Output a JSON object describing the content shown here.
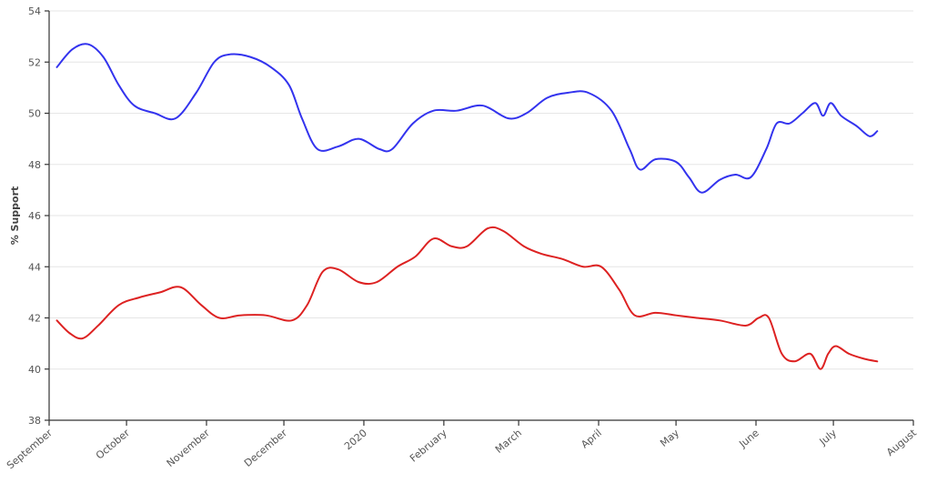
{
  "chart_data": {
    "type": "line",
    "title": "",
    "xlabel": "",
    "ylabel": "% Support",
    "ylim": [
      38,
      54
    ],
    "yticks": [
      38,
      40,
      42,
      44,
      46,
      48,
      50,
      52,
      54
    ],
    "grid": "horizontal",
    "x_axis": {
      "type": "date",
      "start": "2019-09-01",
      "end": "2020-08-01",
      "tick_dates": [
        "2019-09-01",
        "2019-10-01",
        "2019-11-01",
        "2019-12-01",
        "2020-01-01",
        "2020-02-01",
        "2020-03-01",
        "2020-04-01",
        "2020-05-01",
        "2020-06-01",
        "2020-07-01",
        "2020-08-01"
      ],
      "tick_labels": [
        "September",
        "October",
        "November",
        "December",
        "2020",
        "February",
        "March",
        "April",
        "May",
        "June",
        "July",
        "August"
      ]
    },
    "series": [
      {
        "color": "#3333ee",
        "points": [
          [
            "2019-09-04",
            51.8
          ],
          [
            "2019-09-10",
            52.5
          ],
          [
            "2019-09-16",
            52.7
          ],
          [
            "2019-09-22",
            52.2
          ],
          [
            "2019-09-28",
            51.1
          ],
          [
            "2019-10-04",
            50.3
          ],
          [
            "2019-10-12",
            50.0
          ],
          [
            "2019-10-20",
            49.8
          ],
          [
            "2019-10-28",
            50.8
          ],
          [
            "2019-11-04",
            52.0
          ],
          [
            "2019-11-10",
            52.3
          ],
          [
            "2019-11-18",
            52.2
          ],
          [
            "2019-11-26",
            51.8
          ],
          [
            "2019-12-03",
            51.1
          ],
          [
            "2019-12-08",
            49.8
          ],
          [
            "2019-12-14",
            48.6
          ],
          [
            "2019-12-22",
            48.7
          ],
          [
            "2019-12-30",
            49.0
          ],
          [
            "2020-01-07",
            48.6
          ],
          [
            "2020-01-12",
            48.6
          ],
          [
            "2020-01-20",
            49.6
          ],
          [
            "2020-01-28",
            50.1
          ],
          [
            "2020-02-06",
            50.1
          ],
          [
            "2020-02-16",
            50.3
          ],
          [
            "2020-02-26",
            49.8
          ],
          [
            "2020-03-04",
            50.0
          ],
          [
            "2020-03-12",
            50.6
          ],
          [
            "2020-03-20",
            50.8
          ],
          [
            "2020-03-28",
            50.8
          ],
          [
            "2020-04-06",
            50.1
          ],
          [
            "2020-04-13",
            48.6
          ],
          [
            "2020-04-17",
            47.8
          ],
          [
            "2020-04-23",
            48.2
          ],
          [
            "2020-05-01",
            48.1
          ],
          [
            "2020-05-06",
            47.5
          ],
          [
            "2020-05-11",
            46.9
          ],
          [
            "2020-05-18",
            47.4
          ],
          [
            "2020-05-24",
            47.6
          ],
          [
            "2020-05-30",
            47.5
          ],
          [
            "2020-06-05",
            48.6
          ],
          [
            "2020-06-09",
            49.6
          ],
          [
            "2020-06-14",
            49.6
          ],
          [
            "2020-06-19",
            50.0
          ],
          [
            "2020-06-24",
            50.4
          ],
          [
            "2020-06-27",
            49.9
          ],
          [
            "2020-06-30",
            50.4
          ],
          [
            "2020-07-04",
            49.9
          ],
          [
            "2020-07-10",
            49.5
          ],
          [
            "2020-07-15",
            49.1
          ],
          [
            "2020-07-18",
            49.3
          ]
        ]
      },
      {
        "color": "#dd2222",
        "points": [
          [
            "2019-09-04",
            41.9
          ],
          [
            "2019-09-09",
            41.4
          ],
          [
            "2019-09-14",
            41.2
          ],
          [
            "2019-09-20",
            41.7
          ],
          [
            "2019-09-28",
            42.5
          ],
          [
            "2019-10-06",
            42.8
          ],
          [
            "2019-10-14",
            43.0
          ],
          [
            "2019-10-22",
            43.2
          ],
          [
            "2019-10-30",
            42.5
          ],
          [
            "2019-11-06",
            42.0
          ],
          [
            "2019-11-14",
            42.1
          ],
          [
            "2019-11-24",
            42.1
          ],
          [
            "2019-12-04",
            41.9
          ],
          [
            "2019-12-10",
            42.5
          ],
          [
            "2019-12-16",
            43.8
          ],
          [
            "2019-12-22",
            43.9
          ],
          [
            "2019-12-30",
            43.4
          ],
          [
            "2020-01-06",
            43.4
          ],
          [
            "2020-01-14",
            44.0
          ],
          [
            "2020-01-21",
            44.4
          ],
          [
            "2020-01-28",
            45.1
          ],
          [
            "2020-02-04",
            44.8
          ],
          [
            "2020-02-10",
            44.8
          ],
          [
            "2020-02-18",
            45.5
          ],
          [
            "2020-02-24",
            45.4
          ],
          [
            "2020-03-03",
            44.8
          ],
          [
            "2020-03-10",
            44.5
          ],
          [
            "2020-03-18",
            44.3
          ],
          [
            "2020-03-26",
            44.0
          ],
          [
            "2020-04-02",
            44.0
          ],
          [
            "2020-04-09",
            43.1
          ],
          [
            "2020-04-15",
            42.1
          ],
          [
            "2020-04-23",
            42.2
          ],
          [
            "2020-05-01",
            42.1
          ],
          [
            "2020-05-09",
            42.0
          ],
          [
            "2020-05-18",
            41.9
          ],
          [
            "2020-05-28",
            41.7
          ],
          [
            "2020-06-02",
            42.0
          ],
          [
            "2020-06-06",
            42.0
          ],
          [
            "2020-06-11",
            40.6
          ],
          [
            "2020-06-16",
            40.3
          ],
          [
            "2020-06-22",
            40.6
          ],
          [
            "2020-06-26",
            40.0
          ],
          [
            "2020-06-29",
            40.6
          ],
          [
            "2020-07-02",
            40.9
          ],
          [
            "2020-07-07",
            40.6
          ],
          [
            "2020-07-13",
            40.4
          ],
          [
            "2020-07-18",
            40.3
          ]
        ]
      }
    ]
  }
}
